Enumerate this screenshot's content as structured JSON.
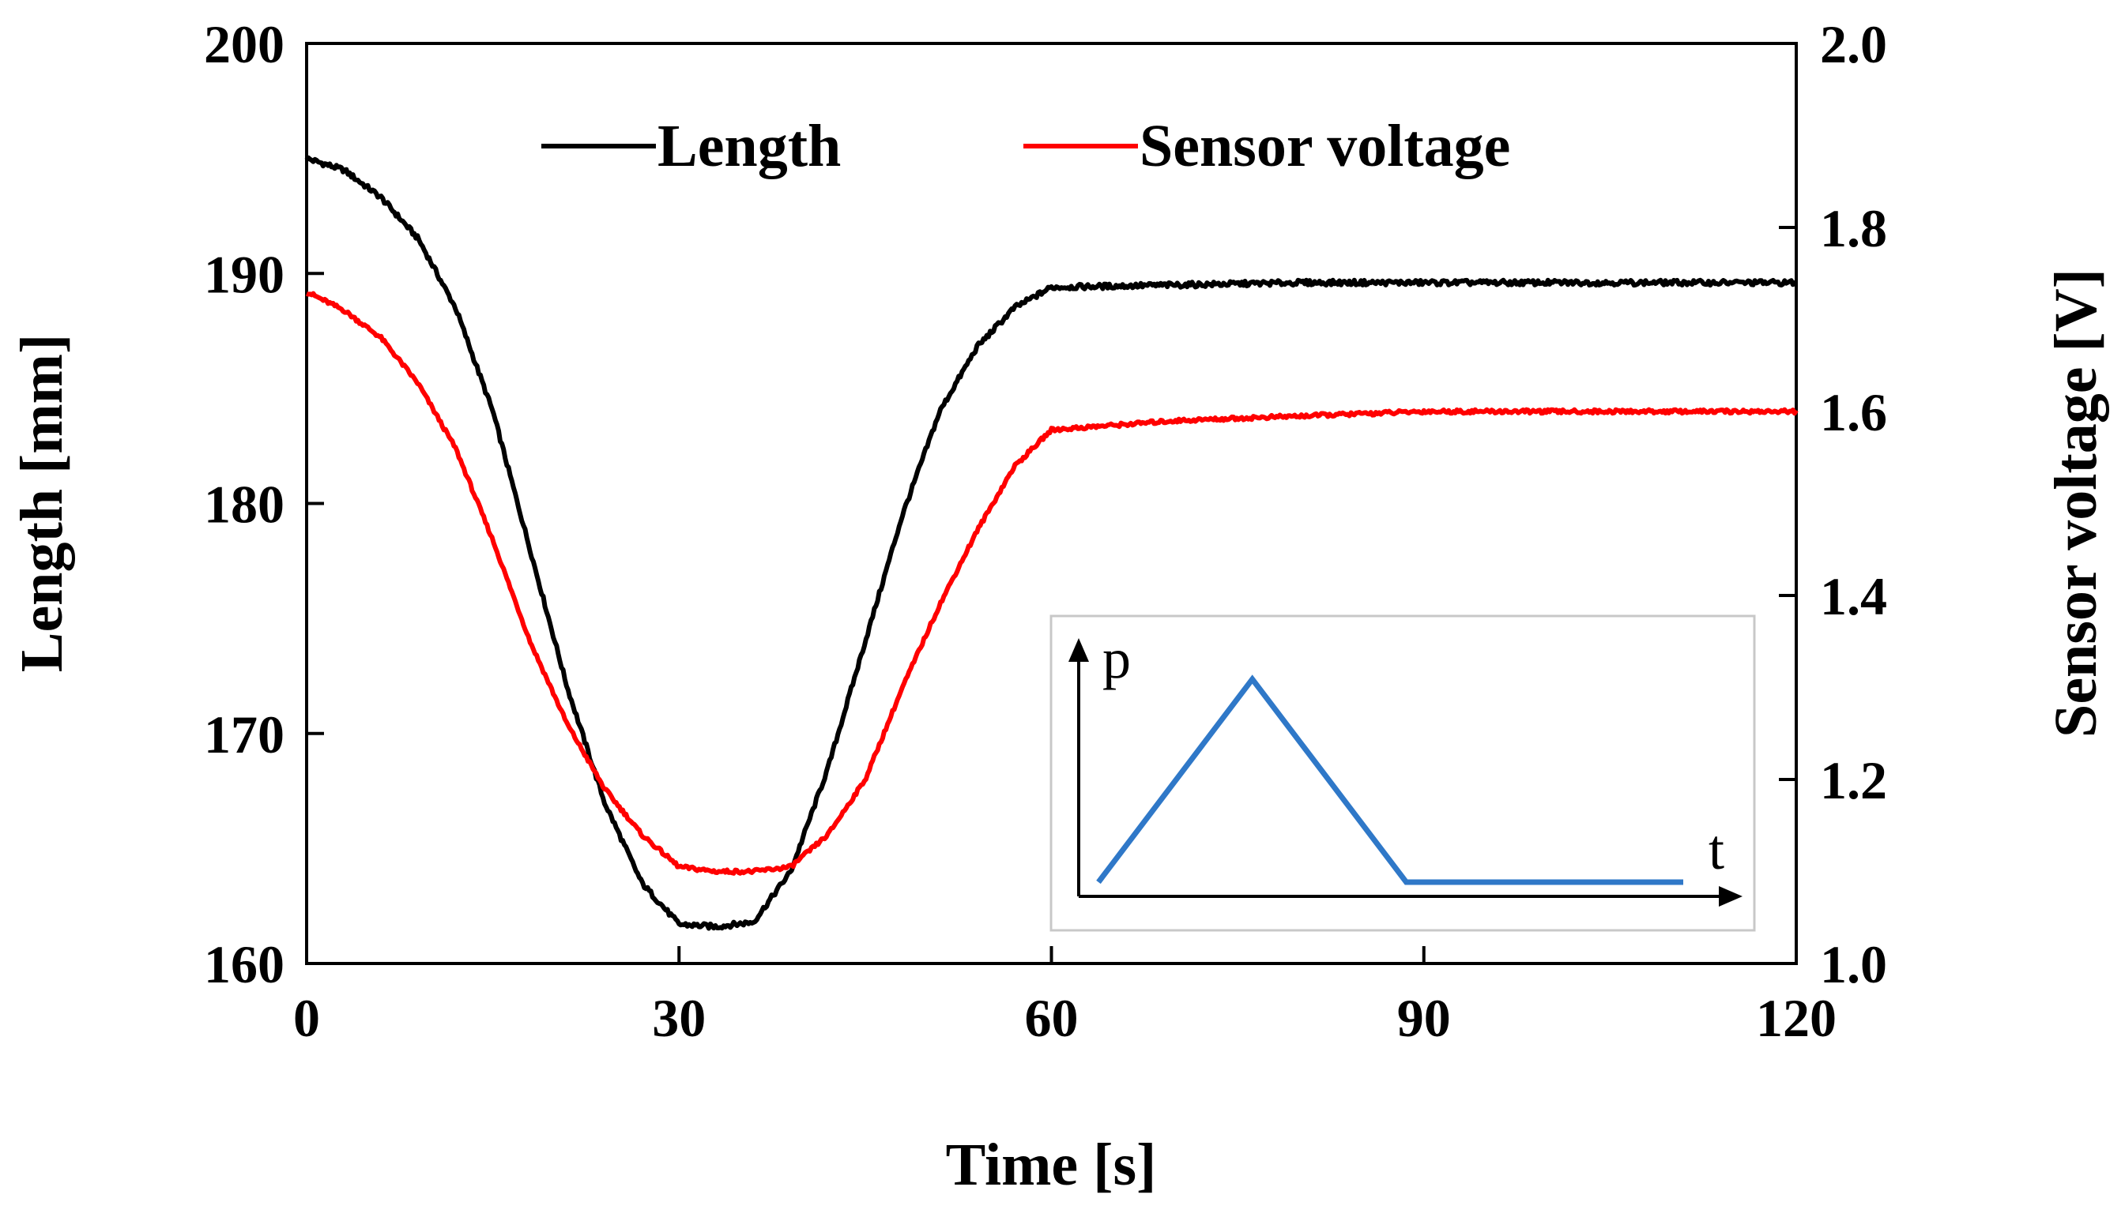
{
  "chart_data": {
    "type": "line",
    "title": "",
    "xlabel": "Time [s]",
    "ylabel": "Length [mm]",
    "y2label": "Sensor voltage [V]",
    "xlim": [
      0,
      120
    ],
    "ylim": [
      160,
      200
    ],
    "y2lim": [
      1.0,
      2.0
    ],
    "x_ticks": [
      "0",
      "30",
      "60",
      "90",
      "120"
    ],
    "y_ticks": [
      "160",
      "170",
      "180",
      "190",
      "200"
    ],
    "y2_ticks": [
      "1.0",
      "1.2",
      "1.4",
      "1.6",
      "1.8",
      "2.0"
    ],
    "legend_position": "top-center",
    "grid": false,
    "series": [
      {
        "name": "Length",
        "axis": "left",
        "color": "#000000",
        "x": [
          0,
          3,
          6,
          9,
          12,
          15,
          18,
          21,
          24,
          27,
          30,
          33,
          36,
          39,
          42,
          45,
          48,
          51,
          54,
          57,
          60,
          70,
          80,
          90,
          100,
          110,
          120
        ],
        "y": [
          195,
          194.5,
          193.3,
          191.5,
          188.5,
          184,
          178,
          172,
          167,
          163.5,
          161.7,
          161.6,
          161.8,
          164,
          168.5,
          174,
          179.5,
          184,
          186.8,
          188.5,
          189.4,
          189.5,
          189.6,
          189.6,
          189.6,
          189.6,
          189.6
        ]
      },
      {
        "name": "Sensor voltage",
        "axis": "right",
        "color": "#ff0000",
        "x": [
          0,
          3,
          6,
          9,
          12,
          15,
          18,
          21,
          24,
          27,
          30,
          33,
          36,
          39,
          42,
          45,
          48,
          51,
          54,
          57,
          60,
          70,
          80,
          90,
          100,
          110,
          120
        ],
        "y": [
          1.73,
          1.71,
          1.68,
          1.63,
          1.56,
          1.46,
          1.35,
          1.26,
          1.19,
          1.14,
          1.105,
          1.1,
          1.1,
          1.105,
          1.14,
          1.2,
          1.3,
          1.39,
          1.47,
          1.54,
          1.58,
          1.59,
          1.595,
          1.6,
          1.6,
          1.6,
          1.6
        ]
      }
    ],
    "inset": {
      "x_axis_label": "t",
      "y_axis_label": "p",
      "profile_color": "#2f78c8",
      "profile_t": [
        0,
        1,
        2,
        3.8
      ],
      "profile_p": [
        0,
        1,
        0,
        0
      ]
    }
  }
}
